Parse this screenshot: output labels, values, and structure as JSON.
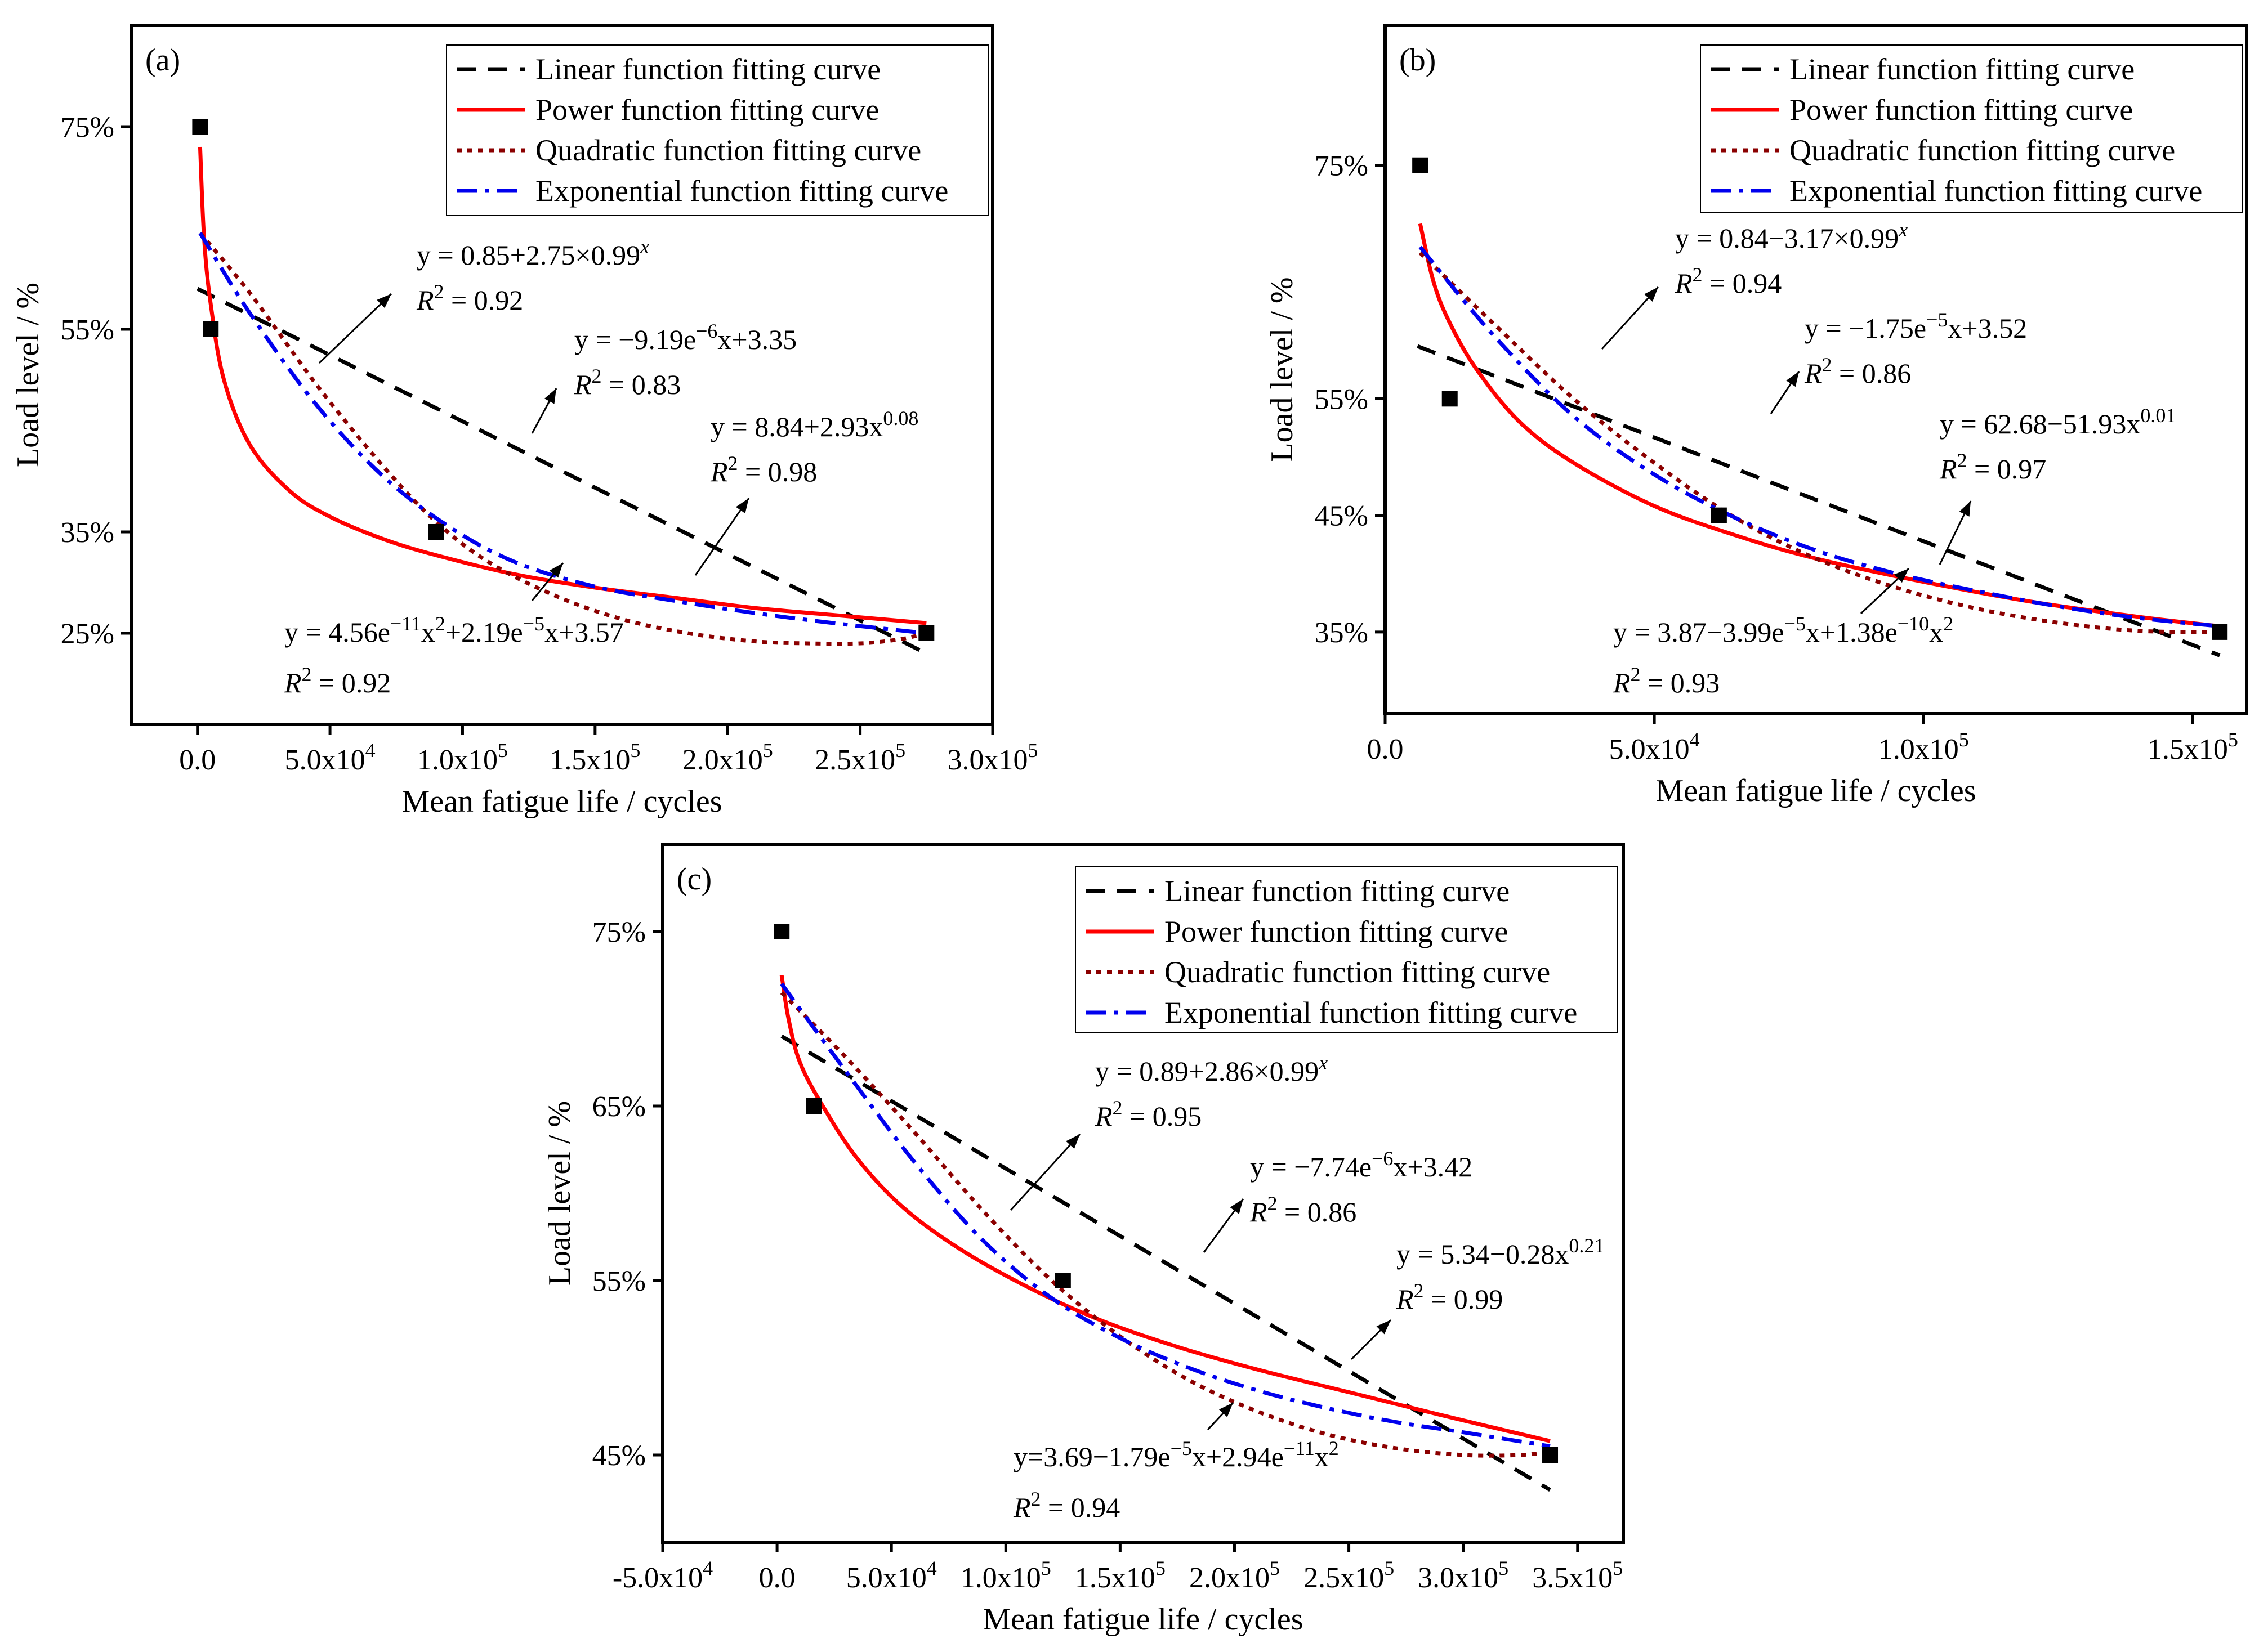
{
  "legend_labels": [
    "Linear function fitting curve",
    "Power function fitting curve",
    "Quadratic function fitting curve",
    "Exponential function fitting curve"
  ],
  "colors": {
    "linear": "#000000",
    "power": "#ff0000",
    "quadratic": "#8b0000",
    "exponential": "#0000ee",
    "points": "#000000"
  },
  "chart_data": [
    {
      "panel": "(a)",
      "type": "line",
      "xlabel": "Mean fatigue life / cycles",
      "ylabel": "Load level / %",
      "xlim": [
        -25000,
        300000
      ],
      "ylim": [
        16,
        85
      ],
      "x_ticks": [
        {
          "value": 0,
          "label": "0.0"
        },
        {
          "value": 50000,
          "label": "5.0x10",
          "exp": "4"
        },
        {
          "value": 100000,
          "label": "1.0x10",
          "exp": "5"
        },
        {
          "value": 150000,
          "label": "1.5x10",
          "exp": "5"
        },
        {
          "value": 200000,
          "label": "2.0x10",
          "exp": "5"
        },
        {
          "value": 250000,
          "label": "2.5x10",
          "exp": "5"
        },
        {
          "value": 300000,
          "label": "3.0x10",
          "exp": "5"
        }
      ],
      "y_ticks": [
        {
          "value": 25,
          "label": "25%"
        },
        {
          "value": 35,
          "label": "35%"
        },
        {
          "value": 55,
          "label": "55%"
        },
        {
          "value": 75,
          "label": "75%"
        }
      ],
      "points": {
        "x": [
          1000,
          5000,
          90000,
          275000
        ],
        "y": [
          75,
          55,
          35,
          25
        ]
      },
      "series": [
        {
          "name": "Linear function fitting curve",
          "style": "linear",
          "x": [
            0,
            275000
          ],
          "y": [
            59,
            23
          ]
        },
        {
          "name": "Power function fitting curve",
          "style": "power",
          "x": [
            1000,
            2500,
            5000,
            10000,
            20000,
            35000,
            50000,
            70000,
            90000,
            120000,
            150000,
            180000,
            210000,
            240000,
            275000
          ],
          "y": [
            73,
            64,
            57.5,
            50,
            43.5,
            39,
            36.5,
            34.3,
            32.7,
            30.8,
            29.5,
            28.5,
            27.5,
            26.8,
            26
          ]
        },
        {
          "name": "Quadratic function fitting curve",
          "style": "quadratic",
          "x": [
            1000,
            20000,
            45000,
            70000,
            90000,
            110000,
            135000,
            160000,
            185000,
            210000,
            230000,
            250000,
            265000,
            275000
          ],
          "y": [
            64.5,
            58.5,
            49.5,
            41.5,
            36,
            32,
            28.7,
            26.4,
            25,
            24.2,
            24,
            24,
            24.4,
            25
          ]
        },
        {
          "name": "Exponential function fitting curve",
          "style": "exponential",
          "x": [
            1000,
            20000,
            45000,
            70000,
            95000,
            120000,
            150000,
            180000,
            210000,
            240000,
            275000
          ],
          "y": [
            64.5,
            56.5,
            47.5,
            40.5,
            35.5,
            32,
            29.6,
            28.2,
            27,
            26,
            25
          ]
        }
      ],
      "annotations": [
        {
          "lines": [
            {
              "text": "y = 0.85+2.75×0.99",
              "sup": "x"
            },
            {
              "pre": "R",
              "sup": "2",
              "text": " = 0.92"
            }
          ]
        },
        {
          "lines": [
            {
              "text": "y = −9.19e",
              "sup": "−6",
              "post": "x+3.35"
            },
            {
              "pre": "R",
              "sup": "2",
              "text": " = 0.83"
            }
          ]
        },
        {
          "lines": [
            {
              "text": "y = 8.84+2.93x",
              "sup": "0.08"
            },
            {
              "pre": "R",
              "sup": "2",
              "text": " = 0.98"
            }
          ]
        },
        {
          "lines": [
            {
              "text": "y = 4.56e",
              "sup": "−11",
              "post": "x"
            },
            {
              "pre": "R",
              "sup": "2",
              "text": " = 0.92"
            }
          ],
          "extra": {
            "sup2": "2",
            "post2": "+2.19e",
            "sup3": "−5",
            "post3": "x+3.57"
          }
        }
      ]
    },
    {
      "panel": "(b)",
      "type": "line",
      "xlabel": "Mean fatigue life / cycles",
      "ylabel": "Load level / %",
      "xlim": [
        0,
        160000
      ],
      "ylim": [
        28,
        87
      ],
      "x_ticks": [
        {
          "value": 0,
          "label": "0.0"
        },
        {
          "value": 50000,
          "label": "5.0x10",
          "exp": "4"
        },
        {
          "value": 100000,
          "label": "1.0x10",
          "exp": "5"
        },
        {
          "value": 150000,
          "label": "1.5x10",
          "exp": "5"
        }
      ],
      "y_ticks": [
        {
          "value": 35,
          "label": "35%"
        },
        {
          "value": 45,
          "label": "45%"
        },
        {
          "value": 55,
          "label": "55%"
        },
        {
          "value": 75,
          "label": "75%"
        }
      ],
      "points": {
        "x": [
          6500,
          12000,
          62000,
          155000
        ],
        "y": [
          75,
          55,
          45,
          35
        ]
      },
      "series": [
        {
          "name": "Linear function fitting curve",
          "style": "linear",
          "x": [
            6000,
            155000
          ],
          "y": [
            59.5,
            33
          ]
        },
        {
          "name": "Power function fitting curve",
          "style": "power",
          "x": [
            6500,
            9000,
            12000,
            17000,
            25000,
            35000,
            50000,
            65000,
            80000,
            100000,
            120000,
            140000,
            155000
          ],
          "y": [
            70,
            65,
            61.5,
            57.5,
            53,
            49.5,
            45.8,
            43.3,
            41.3,
            39.3,
            37.6,
            36.3,
            35.5
          ]
        },
        {
          "name": "Quadratic function fitting curve",
          "style": "quadratic",
          "x": [
            6500,
            20000,
            35000,
            50000,
            65000,
            80000,
            95000,
            110000,
            125000,
            140000,
            155000
          ],
          "y": [
            67.5,
            61.5,
            55,
            49.5,
            44.8,
            41.3,
            38.8,
            37,
            35.8,
            35.1,
            35
          ]
        },
        {
          "name": "Exponential function fitting curve",
          "style": "exponential",
          "x": [
            6500,
            20000,
            35000,
            50000,
            65000,
            80000,
            95000,
            110000,
            125000,
            140000,
            155000
          ],
          "y": [
            68,
            60.5,
            53.5,
            48.5,
            44.8,
            42,
            40,
            38.5,
            37.2,
            36.2,
            35.5
          ]
        }
      ],
      "annotations": [
        {
          "lines": [
            {
              "text": "y = 0.84−3.17×0.99",
              "sup": "x"
            },
            {
              "pre": "R",
              "sup": "2",
              "text": " = 0.94"
            }
          ]
        },
        {
          "lines": [
            {
              "text": "y = −1.75e",
              "sup": "−5",
              "post": "x+3.52"
            },
            {
              "pre": "R",
              "sup": "2",
              "text": " = 0.86"
            }
          ]
        },
        {
          "lines": [
            {
              "text": "y = 62.68−51.93x",
              "sup": "0.01"
            },
            {
              "pre": "R",
              "sup": "2",
              "text": " = 0.97"
            }
          ]
        },
        {
          "lines": [
            {
              "text": "y = 3.87−3.99e",
              "sup": "−5",
              "post": "x+1.38e"
            },
            {
              "pre": "R",
              "sup": "2",
              "text": " = 0.93"
            }
          ],
          "extra": {
            "sup2": "−10",
            "post2": "x",
            "sup3": "2",
            "post3": ""
          }
        }
      ]
    },
    {
      "panel": "(c)",
      "type": "line",
      "xlabel": "Mean fatigue life / cycles",
      "ylabel": "Load level / %",
      "xlim": [
        -50000,
        370000
      ],
      "ylim": [
        40,
        80
      ],
      "x_ticks": [
        {
          "value": -50000,
          "label": "-5.0x10",
          "exp": "4"
        },
        {
          "value": 0,
          "label": "0.0"
        },
        {
          "value": 50000,
          "label": "5.0x10",
          "exp": "4"
        },
        {
          "value": 100000,
          "label": "1.0x10",
          "exp": "5"
        },
        {
          "value": 150000,
          "label": "1.5x10",
          "exp": "5"
        },
        {
          "value": 200000,
          "label": "2.0x10",
          "exp": "5"
        },
        {
          "value": 250000,
          "label": "2.5x10",
          "exp": "5"
        },
        {
          "value": 300000,
          "label": "3.0x10",
          "exp": "5"
        },
        {
          "value": 350000,
          "label": "3.5x10",
          "exp": "5"
        }
      ],
      "y_ticks": [
        {
          "value": 45,
          "label": "45%"
        },
        {
          "value": 55,
          "label": "55%"
        },
        {
          "value": 65,
          "label": "65%"
        },
        {
          "value": 75,
          "label": "75%"
        }
      ],
      "points": {
        "x": [
          2000,
          16000,
          125000,
          338000
        ],
        "y": [
          75,
          65,
          55,
          45
        ]
      },
      "series": [
        {
          "name": "Linear function fitting curve",
          "style": "linear",
          "x": [
            2000,
            338000
          ],
          "y": [
            69,
            43
          ]
        },
        {
          "name": "Power function fitting curve",
          "style": "power",
          "x": [
            2000,
            5000,
            10000,
            20000,
            35000,
            55000,
            80000,
            110000,
            140000,
            175000,
            210000,
            250000,
            290000,
            338000
          ],
          "y": [
            72.5,
            70,
            67.5,
            65,
            62,
            59.2,
            56.8,
            54.6,
            52.8,
            51.2,
            49.9,
            48.6,
            47.3,
            45.8
          ]
        },
        {
          "name": "Quadratic function fitting curve",
          "style": "quadratic",
          "x": [
            2000,
            30000,
            60000,
            90000,
            120000,
            150000,
            180000,
            210000,
            240000,
            270000,
            300000,
            325000,
            338000
          ],
          "y": [
            71.5,
            67.8,
            63.5,
            59,
            55,
            51.8,
            49.3,
            47.5,
            46.2,
            45.4,
            45,
            45,
            45.2
          ]
        },
        {
          "name": "Exponential function fitting curve",
          "style": "exponential",
          "x": [
            2000,
            30000,
            60000,
            90000,
            120000,
            150000,
            180000,
            210000,
            240000,
            270000,
            300000,
            338000
          ],
          "y": [
            72,
            67,
            61.8,
            57.3,
            54,
            51.7,
            50,
            48.7,
            47.7,
            46.9,
            46.3,
            45.5
          ]
        }
      ],
      "annotations": [
        {
          "lines": [
            {
              "text": "y = 0.89+2.86×0.99",
              "sup": "x"
            },
            {
              "pre": "R",
              "sup": "2",
              "text": " = 0.95"
            }
          ]
        },
        {
          "lines": [
            {
              "text": "y = −7.74e",
              "sup": "−6",
              "post": "x+3.42"
            },
            {
              "pre": "R",
              "sup": "2",
              "text": " = 0.86"
            }
          ]
        },
        {
          "lines": [
            {
              "text": "y = 5.34−0.28x",
              "sup": "0.21"
            },
            {
              "pre": "R",
              "sup": "2",
              "text": " = 0.99"
            }
          ]
        },
        {
          "lines": [
            {
              "text": "y=3.69−1.79e",
              "sup": "−5",
              "post": "x+2.94e"
            },
            {
              "pre": "R",
              "sup": "2",
              "text": " = 0.94"
            }
          ],
          "extra": {
            "sup2": "−11",
            "post2": "x",
            "sup3": "2",
            "post3": ""
          }
        }
      ]
    }
  ]
}
